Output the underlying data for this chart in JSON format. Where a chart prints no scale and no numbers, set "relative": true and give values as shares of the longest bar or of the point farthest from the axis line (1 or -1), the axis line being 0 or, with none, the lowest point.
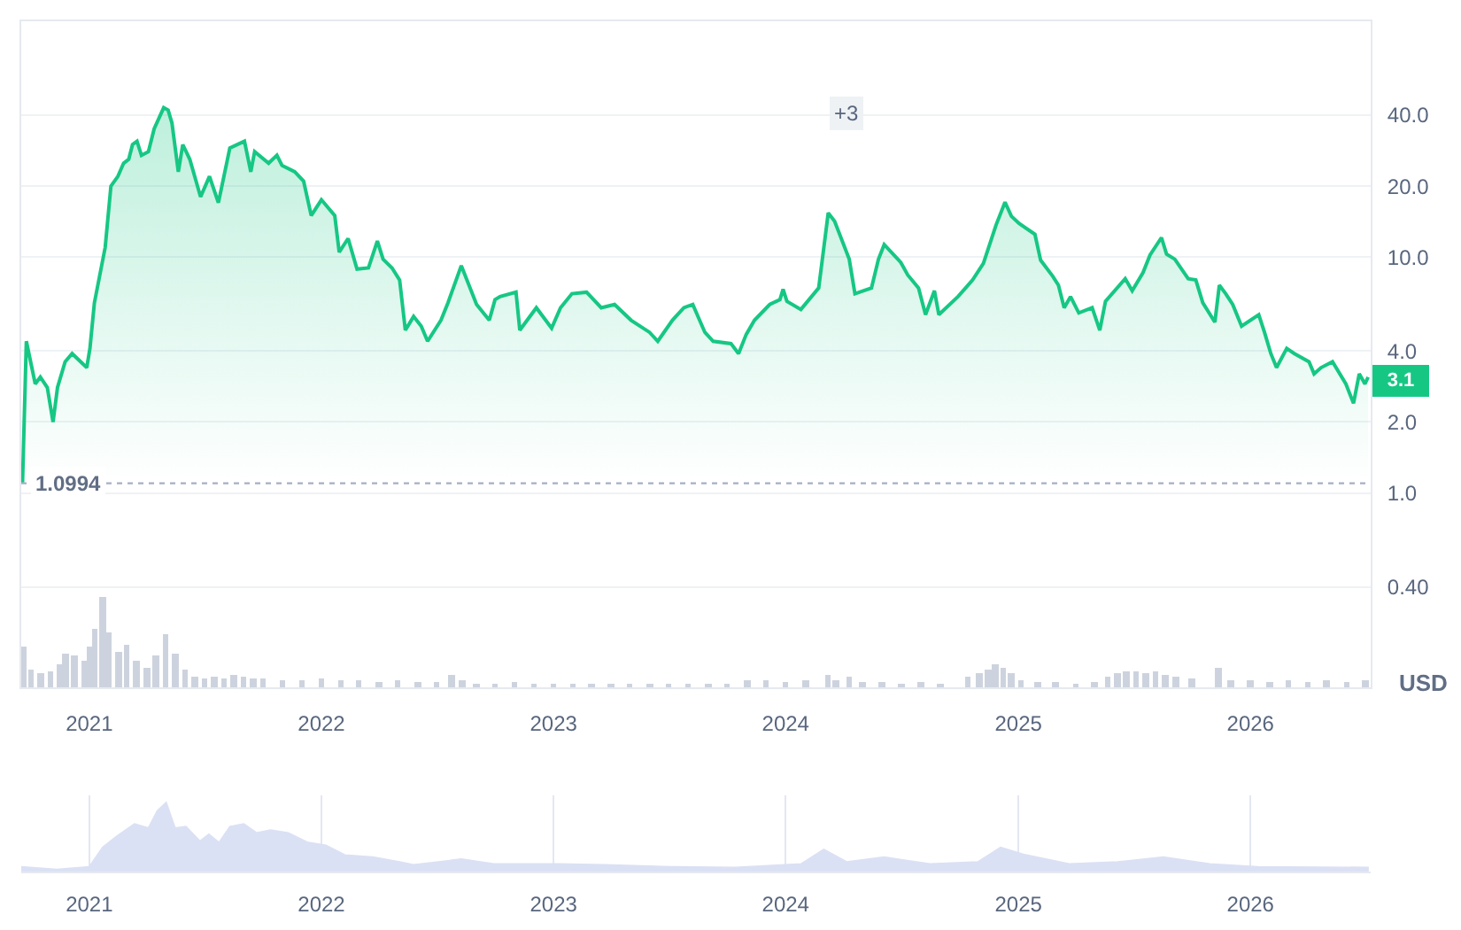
{
  "chart_data": [
    {
      "type": "area",
      "ylabel": "USD",
      "log": true,
      "grid": "y",
      "xlim": [
        "2020-09-16",
        "2026-07-09"
      ],
      "ylim": [
        0.15,
        100
      ],
      "xticks": [
        {
          "value": "2021-01-01",
          "label": "2021"
        },
        {
          "value": "2022-01-01",
          "label": "2022"
        },
        {
          "value": "2023-01-01",
          "label": "2023"
        },
        {
          "value": "2024-01-01",
          "label": "2024"
        },
        {
          "value": "2025-01-01",
          "label": "2025"
        },
        {
          "value": "2026-01-01",
          "label": "2026"
        }
      ],
      "yticks": [
        {
          "value": 0.4,
          "label": "0.40"
        },
        {
          "value": 1,
          "label": "1.0"
        },
        {
          "value": 2,
          "label": "2.0"
        },
        {
          "value": 4,
          "label": "4.0"
        },
        {
          "value": 10,
          "label": "10.0"
        },
        {
          "value": 20,
          "label": "20.0"
        },
        {
          "value": 40,
          "label": "40.0"
        }
      ],
      "x": [
        "2020-09-18",
        "2020-09-24",
        "2020-10-08",
        "2020-10-16",
        "2020-10-27",
        "2020-11-05",
        "2020-11-12",
        "2020-11-24",
        "2020-12-05",
        "2020-12-28",
        "2021-01-02",
        "2021-01-09",
        "2021-01-26",
        "2021-02-04",
        "2021-02-15",
        "2021-02-24",
        "2021-03-04",
        "2021-03-10",
        "2021-03-17",
        "2021-03-24",
        "2021-04-04",
        "2021-04-13",
        "2021-04-28",
        "2021-05-05",
        "2021-05-11",
        "2021-05-21",
        "2021-05-28",
        "2021-06-08",
        "2021-06-25",
        "2021-07-09",
        "2021-07-23",
        "2021-08-10",
        "2021-09-02",
        "2021-09-12",
        "2021-09-18",
        "2021-10-10",
        "2021-10-23",
        "2021-10-31",
        "2021-11-20",
        "2021-12-04",
        "2021-12-16",
        "2022-01-01",
        "2022-01-22",
        "2022-01-29",
        "2022-02-12",
        "2022-02-26",
        "2022-03-16",
        "2022-03-30",
        "2022-04-08",
        "2022-04-22",
        "2022-05-04",
        "2022-05-13",
        "2022-05-26",
        "2022-06-07",
        "2022-06-17",
        "2022-07-08",
        "2022-07-19",
        "2022-08-09",
        "2022-09-02",
        "2022-09-22",
        "2022-10-01",
        "2022-10-09",
        "2022-11-03",
        "2022-11-09",
        "2022-12-05",
        "2022-12-29",
        "2023-01-12",
        "2023-01-30",
        "2023-02-22",
        "2023-03-17",
        "2023-04-07",
        "2023-05-03",
        "2023-06-01",
        "2023-06-14",
        "2023-07-07",
        "2023-07-25",
        "2023-08-08",
        "2023-08-27",
        "2023-09-09",
        "2023-10-07",
        "2023-10-19",
        "2023-10-31",
        "2023-11-13",
        "2023-12-07",
        "2023-12-23",
        "2023-12-28",
        "2024-01-03",
        "2024-01-25",
        "2024-02-22",
        "2024-03-08",
        "2024-03-18",
        "2024-04-10",
        "2024-04-19",
        "2024-05-15",
        "2024-05-26",
        "2024-06-04",
        "2024-06-30",
        "2024-07-11",
        "2024-07-28",
        "2024-08-08",
        "2024-08-22",
        "2024-08-29",
        "2024-09-28",
        "2024-10-10",
        "2024-10-21",
        "2024-11-07",
        "2024-11-27",
        "2024-12-11",
        "2024-12-21",
        "2025-01-02",
        "2025-01-27",
        "2025-02-05",
        "2025-02-24",
        "2025-03-05",
        "2025-03-14",
        "2025-03-24",
        "2025-04-06",
        "2025-04-27",
        "2025-05-09",
        "2025-05-18",
        "2025-06-18",
        "2025-06-29",
        "2025-07-16",
        "2025-07-27",
        "2025-08-14",
        "2025-08-22",
        "2025-09-04",
        "2025-09-25",
        "2025-10-07",
        "2025-10-18",
        "2025-11-06",
        "2025-11-13",
        "2025-11-23",
        "2025-12-04",
        "2025-12-18",
        "2026-01-14",
        "2026-01-23",
        "2026-02-02",
        "2026-02-11",
        "2026-02-27",
        "2026-03-11",
        "2026-04-03",
        "2026-04-11",
        "2026-04-22",
        "2026-05-10",
        "2026-05-31",
        "2026-06-12",
        "2026-06-21",
        "2026-06-30",
        "2026-07-05"
      ],
      "series": [
        {
          "color": "#16c784",
          "values": [
            1.1,
            4.4,
            2.9,
            3.1,
            2.8,
            2.0,
            2.8,
            3.6,
            3.9,
            3.4,
            4.1,
            6.4,
            11,
            20,
            22,
            25,
            26,
            30,
            31,
            27,
            28,
            35,
            43,
            42,
            37,
            23,
            30,
            26,
            18,
            22,
            17,
            29,
            31,
            23,
            28,
            25,
            27,
            24.5,
            23,
            21,
            15,
            17.5,
            15,
            10.5,
            12,
            8.9,
            9.0,
            11.7,
            9.8,
            9.0,
            8.0,
            4.9,
            5.6,
            5.1,
            4.4,
            5.4,
            6.4,
            9.2,
            6.3,
            5.4,
            6.6,
            6.8,
            7.1,
            4.9,
            6.1,
            5.0,
            6.1,
            7.0,
            7.1,
            6.1,
            6.3,
            5.4,
            4.8,
            4.4,
            5.4,
            6.1,
            6.3,
            4.8,
            4.4,
            4.3,
            3.9,
            4.7,
            5.4,
            6.3,
            6.6,
            7.3,
            6.5,
            6.0,
            7.4,
            15.4,
            14.2,
            9.8,
            7.0,
            7.4,
            9.8,
            11.3,
            9.5,
            8.4,
            7.4,
            5.7,
            7.2,
            5.7,
            6.8,
            7.4,
            8.0,
            9.4,
            13.7,
            17.1,
            14.9,
            13.9,
            12.5,
            9.7,
            8.3,
            7.6,
            6.1,
            6.8,
            5.8,
            6.1,
            4.9,
            6.5,
            8.1,
            7.2,
            8.6,
            10.2,
            12.1,
            10.3,
            9.8,
            8.1,
            8.0,
            6.4,
            5.3,
            7.6,
            7.0,
            6.3,
            5.1,
            5.7,
            4.8,
            3.9,
            3.4,
            4.1,
            3.9,
            3.6,
            3.2,
            3.4,
            3.6,
            2.9,
            2.4,
            3.2,
            2.9,
            3.1
          ]
        }
      ],
      "ref_lines": [
        {
          "axis": "y",
          "value": 1.0994,
          "label": "1.0994",
          "color": "#a6b0c3",
          "line_style": "dotted"
        }
      ],
      "annotations": [
        {
          "text": "3.1",
          "x": "2026-07-05",
          "y": 3.1
        },
        {
          "text": "+3",
          "x": "2024-04-06",
          "y": 41
        }
      ]
    },
    {
      "type": "bar",
      "relative": true,
      "tick_labels": false,
      "color": "#cdd3de",
      "xlim": [
        "2020-09-16",
        "2026-07-09"
      ],
      "x": [
        "2020-09-18",
        "2020-10-01",
        "2020-10-16",
        "2020-11-01",
        "2020-11-16",
        "2020-11-24",
        "2020-12-08",
        "2020-12-24",
        "2021-01-01",
        "2021-01-10",
        "2021-01-22",
        "2021-02-01",
        "2021-02-16",
        "2021-03-01",
        "2021-03-16",
        "2021-04-01",
        "2021-04-16",
        "2021-05-01",
        "2021-05-16",
        "2021-06-01",
        "2021-06-16",
        "2021-07-01",
        "2021-07-16",
        "2021-08-01",
        "2021-08-16",
        "2021-09-01",
        "2021-09-16",
        "2021-10-01",
        "2021-11-01",
        "2021-12-01",
        "2022-01-01",
        "2022-02-01",
        "2022-03-01",
        "2022-04-01",
        "2022-05-01",
        "2022-06-01",
        "2022-07-01",
        "2022-07-24",
        "2022-08-10",
        "2022-09-01",
        "2022-10-01",
        "2022-11-01",
        "2022-12-01",
        "2023-01-01",
        "2023-02-01",
        "2023-03-01",
        "2023-04-01",
        "2023-05-01",
        "2023-06-01",
        "2023-07-01",
        "2023-08-01",
        "2023-09-01",
        "2023-10-01",
        "2023-11-01",
        "2023-12-01",
        "2024-01-01",
        "2024-02-01",
        "2024-03-08",
        "2024-03-20",
        "2024-04-10",
        "2024-05-01",
        "2024-06-01",
        "2024-07-01",
        "2024-08-01",
        "2024-09-01",
        "2024-10-13",
        "2024-11-01",
        "2024-11-15",
        "2024-11-25",
        "2024-12-08",
        "2024-12-20",
        "2025-01-05",
        "2025-02-01",
        "2025-03-01",
        "2025-04-01",
        "2025-05-01",
        "2025-05-21",
        "2025-06-05",
        "2025-06-20",
        "2025-07-05",
        "2025-07-20",
        "2025-08-05",
        "2025-08-20",
        "2025-09-05",
        "2025-10-01",
        "2025-11-12",
        "2025-12-01",
        "2026-01-01",
        "2026-02-01",
        "2026-03-01",
        "2026-04-01",
        "2026-05-01",
        "2026-06-01",
        "2026-07-01"
      ],
      "values": [
        0.45,
        0.2,
        0.15,
        0.18,
        0.25,
        0.38,
        0.35,
        0.3,
        0.45,
        0.65,
        1,
        0.6,
        0.4,
        0.48,
        0.3,
        0.22,
        0.35,
        0.58,
        0.38,
        0.2,
        0.12,
        0.1,
        0.12,
        0.1,
        0.14,
        0.12,
        0.1,
        0.09,
        0.08,
        0.08,
        0.09,
        0.07,
        0.08,
        0.06,
        0.07,
        0.06,
        0.06,
        0.14,
        0.07,
        0.04,
        0.04,
        0.05,
        0.04,
        0.03,
        0.03,
        0.04,
        0.03,
        0.03,
        0.04,
        0.03,
        0.03,
        0.04,
        0.04,
        0.07,
        0.07,
        0.06,
        0.07,
        0.13,
        0.08,
        0.12,
        0.05,
        0.05,
        0.04,
        0.05,
        0.04,
        0.12,
        0.15,
        0.2,
        0.25,
        0.22,
        0.15,
        0.08,
        0.05,
        0.05,
        0.04,
        0.05,
        0.12,
        0.15,
        0.17,
        0.17,
        0.16,
        0.17,
        0.14,
        0.12,
        0.1,
        0.22,
        0.08,
        0.07,
        0.06,
        0.07,
        0.06,
        0.07,
        0.06,
        0.07
      ]
    },
    {
      "type": "area",
      "relative": true,
      "tick_labels": "x",
      "grid": "x",
      "color": "#dbe1f4",
      "xlim": [
        "2020-09-16",
        "2026-07-09"
      ],
      "xticks": [
        {
          "value": "2021-01-01",
          "label": "2021"
        },
        {
          "value": "2022-01-01",
          "label": "2022"
        },
        {
          "value": "2023-01-01",
          "label": "2023"
        },
        {
          "value": "2024-01-01",
          "label": "2024"
        },
        {
          "value": "2025-01-01",
          "label": "2025"
        },
        {
          "value": "2026-01-01",
          "label": "2026"
        }
      ],
      "x": [
        "2020-09-16",
        "2020-11-11",
        "2021-01-01",
        "2021-01-22",
        "2021-02-13",
        "2021-03-13",
        "2021-04-04",
        "2021-04-18",
        "2021-05-02",
        "2021-05-16",
        "2021-06-02",
        "2021-06-24",
        "2021-07-08",
        "2021-07-24",
        "2021-08-10",
        "2021-09-01",
        "2021-09-21",
        "2021-10-13",
        "2021-11-10",
        "2021-12-11",
        "2022-01-08",
        "2022-02-07",
        "2022-03-23",
        "2022-05-04",
        "2022-05-26",
        "2022-08-09",
        "2022-09-29",
        "2023-01-10",
        "2023-03-23",
        "2023-07-04",
        "2023-10-14",
        "2024-01-25",
        "2024-03-01",
        "2024-04-06",
        "2024-06-04",
        "2024-08-15",
        "2024-10-29",
        "2024-12-04",
        "2025-01-09",
        "2025-03-22",
        "2025-06-06",
        "2025-08-17",
        "2025-10-29",
        "2026-01-12",
        "2026-07-06"
      ],
      "values": [
        0.07,
        0.03,
        0.07,
        0.35,
        0.51,
        0.69,
        0.63,
        0.88,
        1,
        0.63,
        0.65,
        0.44,
        0.54,
        0.42,
        0.65,
        0.69,
        0.56,
        0.6,
        0.56,
        0.42,
        0.38,
        0.24,
        0.21,
        0.14,
        0.1,
        0.18,
        0.11,
        0.11,
        0.1,
        0.07,
        0.06,
        0.11,
        0.32,
        0.14,
        0.21,
        0.11,
        0.14,
        0.35,
        0.25,
        0.11,
        0.14,
        0.21,
        0.11,
        0.07,
        0.06
      ]
    }
  ]
}
